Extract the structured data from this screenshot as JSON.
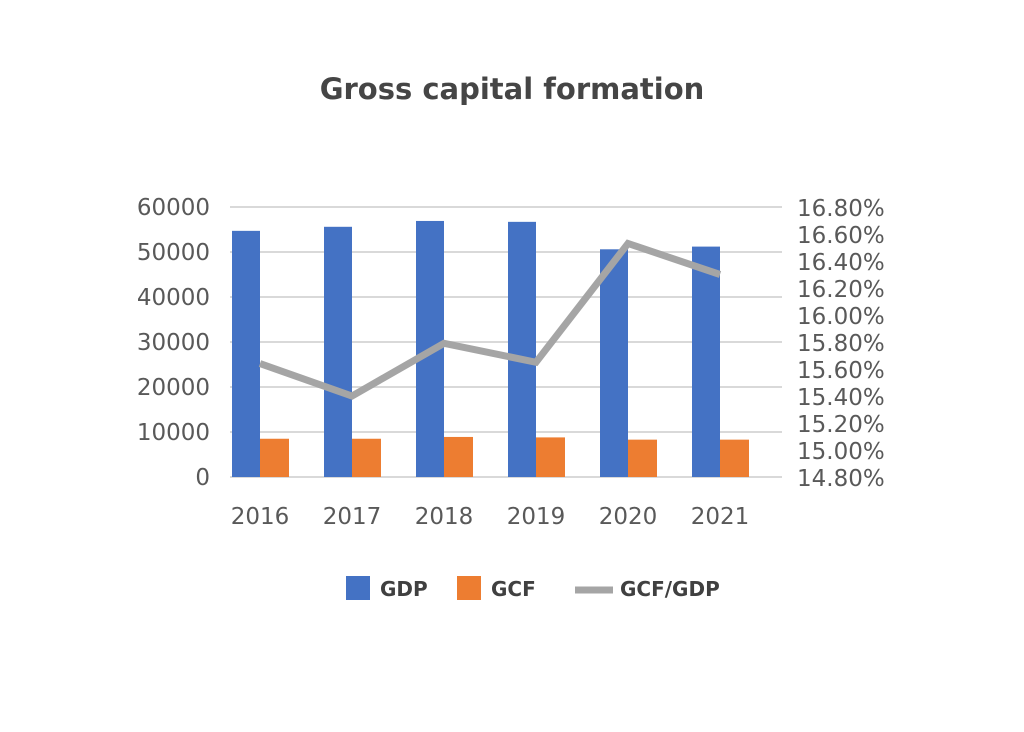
{
  "chart_data": {
    "type": "bar",
    "title": "Gross capital formation",
    "categories": [
      "2016",
      "2017",
      "2018",
      "2019",
      "2020",
      "2021"
    ],
    "series": [
      {
        "name": "GDP",
        "type": "bar",
        "axis": "left",
        "color": "#4472C4",
        "values": [
          54700,
          55600,
          56900,
          56700,
          50600,
          51200
        ]
      },
      {
        "name": "GCF",
        "type": "bar",
        "axis": "left",
        "color": "#ED7D31",
        "values": [
          8500,
          8500,
          8900,
          8800,
          8300,
          8300
        ]
      },
      {
        "name": "GCF/GDP",
        "type": "line",
        "axis": "right",
        "color": "#A5A5A5",
        "values": [
          15.64,
          15.4,
          15.79,
          15.65,
          16.53,
          16.3
        ]
      }
    ],
    "ylim": [
      0,
      60000
    ],
    "yticks": [
      "0",
      "10000",
      "20000",
      "30000",
      "40000",
      "50000",
      "60000"
    ],
    "y2lim": [
      14.8,
      16.8
    ],
    "y2ticks": [
      "14.80%",
      "15.00%",
      "15.20%",
      "15.40%",
      "15.60%",
      "15.80%",
      "16.00%",
      "16.20%",
      "16.40%",
      "16.60%",
      "16.80%"
    ],
    "grid": true,
    "legend_placement": "bottom"
  }
}
